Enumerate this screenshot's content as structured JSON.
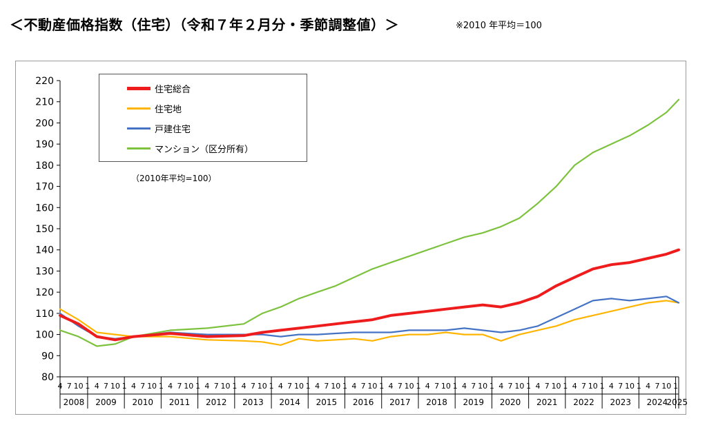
{
  "page": {
    "heading": "＜不動産価格指数（住宅）（令和７年２月分・季節調整値）＞",
    "note": "※2010 年平均＝100"
  },
  "chart_data": {
    "type": "line",
    "title": "",
    "xlabel": "",
    "ylabel": "",
    "base_note": "（2010年平均=100）",
    "ylim": [
      80,
      220
    ],
    "yticks": [
      80,
      90,
      100,
      110,
      120,
      130,
      140,
      150,
      160,
      170,
      180,
      190,
      200,
      210,
      220
    ],
    "x_range": [
      "2008-04",
      "2025-02"
    ],
    "month_ticks": [
      "4",
      "7",
      "10",
      "1"
    ],
    "years": [
      "2008",
      "2009",
      "2010",
      "2011",
      "2012",
      "2013",
      "2014",
      "2015",
      "2016",
      "2017",
      "2018",
      "2019",
      "2020",
      "2021",
      "2022",
      "2023",
      "2024",
      "2025"
    ],
    "grid": false,
    "legend_position": "top-left",
    "series": [
      {
        "name": "住宅総合",
        "color": "#ee1c1c",
        "x": [
          "2008-04",
          "2008-10",
          "2009-04",
          "2009-10",
          "2010-04",
          "2011-04",
          "2012-04",
          "2013-04",
          "2013-10",
          "2014-04",
          "2014-10",
          "2015-04",
          "2015-10",
          "2016-04",
          "2016-10",
          "2017-04",
          "2017-10",
          "2018-04",
          "2018-10",
          "2019-04",
          "2019-10",
          "2020-04",
          "2020-10",
          "2021-04",
          "2021-10",
          "2022-04",
          "2022-10",
          "2023-04",
          "2023-10",
          "2024-04",
          "2024-10",
          "2025-02"
        ],
        "values": [
          109,
          105,
          99,
          97.5,
          99,
          100.5,
          99,
          99.5,
          101,
          102,
          103,
          104,
          105,
          106,
          107,
          109,
          110,
          111,
          112,
          113,
          114,
          113,
          115,
          118,
          123,
          127,
          131,
          133,
          134,
          136,
          138,
          140
        ]
      },
      {
        "name": "住宅地",
        "color": "#ffb400",
        "x": [
          "2008-04",
          "2008-10",
          "2009-04",
          "2009-10",
          "2010-04",
          "2011-04",
          "2012-04",
          "2013-04",
          "2013-10",
          "2014-04",
          "2014-10",
          "2015-04",
          "2015-10",
          "2016-04",
          "2016-10",
          "2017-04",
          "2017-10",
          "2018-04",
          "2018-10",
          "2019-04",
          "2019-10",
          "2020-04",
          "2020-10",
          "2021-04",
          "2021-10",
          "2022-04",
          "2022-10",
          "2023-04",
          "2023-10",
          "2024-04",
          "2024-10",
          "2025-02"
        ],
        "values": [
          112,
          107,
          101,
          100,
          99,
          99,
          97.5,
          97,
          96.5,
          95,
          98,
          97,
          97.5,
          98,
          97,
          99,
          100,
          100,
          101,
          100,
          100,
          97,
          100,
          102,
          104,
          107,
          109,
          111,
          113,
          115,
          116,
          115
        ]
      },
      {
        "name": "戸建住宅",
        "color": "#4472c4",
        "x": [
          "2008-04",
          "2008-10",
          "2009-04",
          "2009-10",
          "2010-04",
          "2011-04",
          "2012-04",
          "2013-04",
          "2013-10",
          "2014-04",
          "2014-10",
          "2015-04",
          "2015-10",
          "2016-04",
          "2016-10",
          "2017-04",
          "2017-10",
          "2018-04",
          "2018-10",
          "2019-04",
          "2019-10",
          "2020-04",
          "2020-10",
          "2021-04",
          "2021-10",
          "2022-04",
          "2022-10",
          "2023-04",
          "2023-10",
          "2024-04",
          "2024-10",
          "2025-02"
        ],
        "values": [
          110,
          104,
          99,
          98,
          99,
          101,
          100,
          100,
          100,
          99,
          100,
          100,
          100.5,
          101,
          101,
          101,
          102,
          102,
          102,
          103,
          102,
          101,
          102,
          104,
          108,
          112,
          116,
          117,
          116,
          117,
          118,
          115
        ]
      },
      {
        "name": "マンション（区分所有）",
        "color": "#7dc23d",
        "x": [
          "2008-04",
          "2008-10",
          "2009-04",
          "2009-10",
          "2010-04",
          "2011-04",
          "2012-04",
          "2013-04",
          "2013-10",
          "2014-04",
          "2014-10",
          "2015-04",
          "2015-10",
          "2016-04",
          "2016-10",
          "2017-04",
          "2017-10",
          "2018-04",
          "2018-10",
          "2019-04",
          "2019-10",
          "2020-04",
          "2020-10",
          "2021-04",
          "2021-10",
          "2022-04",
          "2022-10",
          "2023-04",
          "2023-10",
          "2024-04",
          "2024-10",
          "2025-02"
        ],
        "values": [
          102,
          99,
          94.5,
          95.5,
          99,
          102,
          103,
          105,
          110,
          113,
          117,
          120,
          123,
          127,
          131,
          134,
          137,
          140,
          143,
          146,
          148,
          151,
          155,
          162,
          170,
          180,
          186,
          190,
          194,
          199,
          205,
          211
        ]
      }
    ]
  }
}
